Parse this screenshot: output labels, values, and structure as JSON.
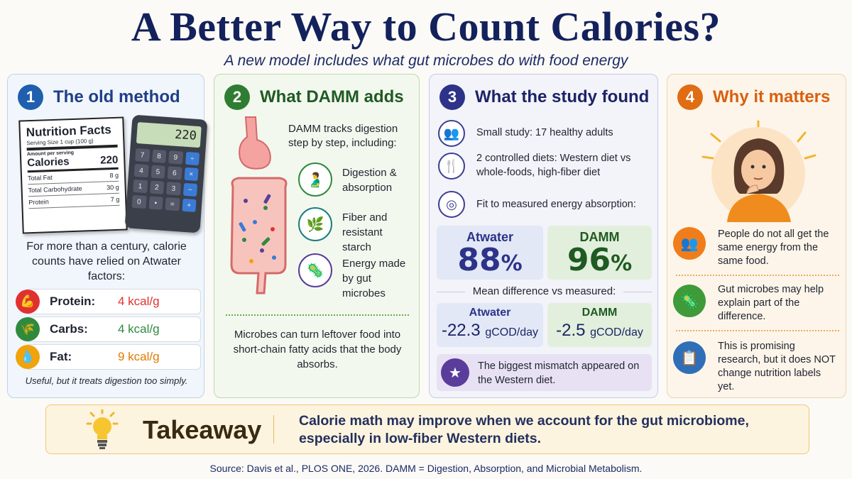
{
  "title": "A Better Way to Count Calories?",
  "subtitle": "A new model includes what gut microbes do with food energy",
  "panel1": {
    "number": "1",
    "title": "The old method",
    "nutrition": {
      "heading": "Nutrition Facts",
      "serving": "Serving Size 1 cup (100 g)",
      "amount": "Amount per serving",
      "calories_label": "Calories",
      "calories_value": "220",
      "rows": [
        {
          "label": "Total Fat",
          "value": "8 g"
        },
        {
          "label": "Total Carbohydrate",
          "value": "30 g"
        },
        {
          "label": "Protein",
          "value": "7 g"
        }
      ]
    },
    "calculator": {
      "display": "220",
      "keys": [
        "7",
        "8",
        "9",
        "÷",
        "4",
        "5",
        "6",
        "×",
        "1",
        "2",
        "3",
        "−",
        "0",
        "•",
        "=",
        "+"
      ]
    },
    "text": "For more than a century, calorie counts have relied on Atwater factors:",
    "macros": [
      {
        "label": "Protein:",
        "value": "4 kcal/g",
        "color": "#e03131",
        "icon": "muscle-icon"
      },
      {
        "label": "Carbs:",
        "value": "4 kcal/g",
        "color": "#2f8a3e",
        "icon": "wheat-icon"
      },
      {
        "label": "Fat:",
        "value": "9 kcal/g",
        "color": "#f0a30a",
        "icon": "oil-drop-icon"
      }
    ],
    "footer": "Useful, but it treats digestion too simply."
  },
  "panel2": {
    "number": "2",
    "title": "What DAMM adds",
    "intro": "DAMM tracks digestion step by step, including:",
    "items": [
      {
        "label": "Digestion & absorption",
        "icon": "stomach-icon"
      },
      {
        "label": "Fiber and resistant starch",
        "icon": "leaf-icon"
      },
      {
        "label": "Energy made by gut microbes",
        "icon": "microbes-icon"
      }
    ],
    "footer": "Microbes can turn leftover food into short-chain fatty acids that the body absorbs."
  },
  "panel3": {
    "number": "3",
    "title": "What the study found",
    "facts": [
      {
        "text": "Small study: 17 healthy adults",
        "icon": "people-icon"
      },
      {
        "text": "2 controlled diets: Western diet vs whole-foods, high-fiber diet",
        "icon": "fork-knife-icon"
      },
      {
        "text": "Fit to measured energy absorption:",
        "icon": "target-icon"
      }
    ],
    "fit": [
      {
        "label": "Atwater",
        "value": "88",
        "unit": "%"
      },
      {
        "label": "DAMM",
        "value": "96",
        "unit": "%"
      }
    ],
    "mean_label": "Mean difference vs measured:",
    "mean": [
      {
        "label": "Atwater",
        "value": "-22.3",
        "unit": "gCOD/day"
      },
      {
        "label": "DAMM",
        "value": "-2.5",
        "unit": "gCOD/day"
      }
    ],
    "note": "The biggest mismatch appeared on the Western diet."
  },
  "panel4": {
    "number": "4",
    "title": "Why it matters",
    "points": [
      {
        "text": "People do not all get the same energy from the same food.",
        "icon": "people-icon"
      },
      {
        "text": "Gut microbes may help explain part of the difference.",
        "icon": "microbes-icon"
      },
      {
        "text": "This is promising research, but it does NOT change nutrition labels yet.",
        "icon": "clipboard-check-icon"
      }
    ]
  },
  "takeaway": {
    "label": "Takeaway",
    "text": "Calorie math may improve when we account for the gut microbiome, especially in low-fiber Western diets."
  },
  "source": "Source: Davis et al., PLOS ONE, 2026. DAMM = Digestion, Absorption, and Microbial Metabolism.",
  "colors": {
    "navy": "#13215c",
    "blue": "#1f5fae",
    "green": "#2f7d32",
    "indigo": "#2c3388",
    "orange": "#e06c13"
  }
}
